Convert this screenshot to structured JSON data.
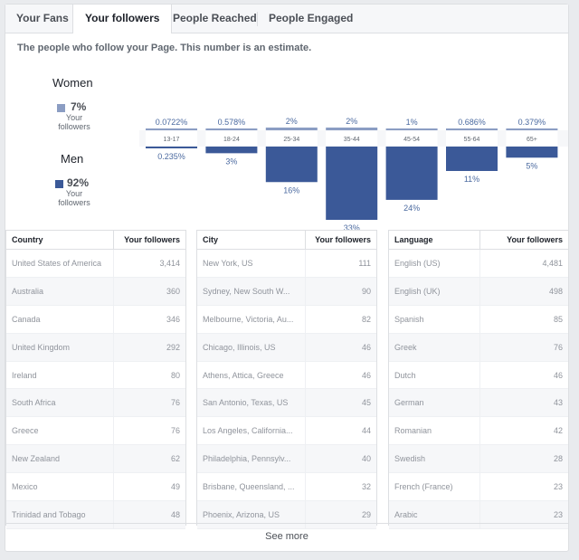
{
  "tabs": [
    "Your Fans",
    "Your followers",
    "People Reached",
    "People Engaged"
  ],
  "description": "The people who follow your Page. This number is an estimate.",
  "legend": {
    "women": {
      "label": "Women",
      "pct": "7%",
      "sub": "Your followers",
      "color": "#8b9dc3"
    },
    "men": {
      "label": "Men",
      "pct": "92%",
      "sub": "Your followers",
      "color": "#3b5998"
    }
  },
  "chart_data": {
    "type": "bar",
    "categories": [
      "13-17",
      "18-24",
      "25-34",
      "35-44",
      "45-54",
      "55-64",
      "65+"
    ],
    "series": [
      {
        "name": "Women",
        "values": [
          0.0722,
          0.578,
          2,
          2,
          1,
          0.686,
          0.379
        ],
        "labels": [
          "0.0722%",
          "0.578%",
          "2%",
          "2%",
          "1%",
          "0.686%",
          "0.379%"
        ]
      },
      {
        "name": "Men",
        "values": [
          0.235,
          3,
          16,
          33,
          24,
          11,
          5
        ],
        "labels": [
          "0.235%",
          "3%",
          "16%",
          "33%",
          "24%",
          "11%",
          "5%"
        ]
      }
    ]
  },
  "tables": [
    {
      "headers": [
        "Country",
        "Your followers"
      ],
      "rows": [
        [
          "United States of America",
          "3,414"
        ],
        [
          "Australia",
          "360"
        ],
        [
          "Canada",
          "346"
        ],
        [
          "United Kingdom",
          "292"
        ],
        [
          "Ireland",
          "80"
        ],
        [
          "South Africa",
          "76"
        ],
        [
          "Greece",
          "76"
        ],
        [
          "New Zealand",
          "62"
        ],
        [
          "Mexico",
          "49"
        ],
        [
          "Trinidad and Tobago",
          "48"
        ]
      ]
    },
    {
      "headers": [
        "City",
        "Your followers"
      ],
      "rows": [
        [
          "New York, US",
          "111"
        ],
        [
          "Sydney, New South W...",
          "90"
        ],
        [
          "Melbourne, Victoria, Au...",
          "82"
        ],
        [
          "Chicago, Illinois, US",
          "46"
        ],
        [
          "Athens, Attica, Greece",
          "46"
        ],
        [
          "San Antonio, Texas, US",
          "45"
        ],
        [
          "Los Angeles, California...",
          "44"
        ],
        [
          "Philadelphia, Pennsylv...",
          "40"
        ],
        [
          "Brisbane, Queensland, ...",
          "32"
        ],
        [
          "Phoenix, Arizona, US",
          "29"
        ]
      ]
    },
    {
      "headers": [
        "Language",
        "Your followers"
      ],
      "rows": [
        [
          "English (US)",
          "4,481"
        ],
        [
          "English (UK)",
          "498"
        ],
        [
          "Spanish",
          "85"
        ],
        [
          "Greek",
          "76"
        ],
        [
          "Dutch",
          "46"
        ],
        [
          "German",
          "43"
        ],
        [
          "Romanian",
          "42"
        ],
        [
          "Swedish",
          "28"
        ],
        [
          "French (France)",
          "23"
        ],
        [
          "Arabic",
          "23"
        ]
      ]
    }
  ],
  "see_more": "See more"
}
